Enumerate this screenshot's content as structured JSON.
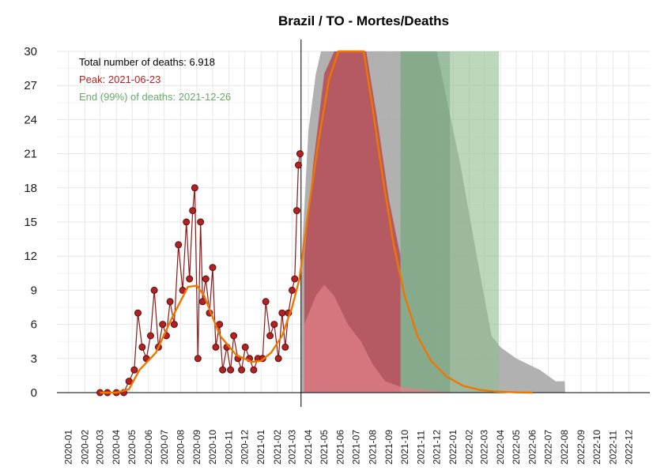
{
  "chart_data": {
    "type": "line",
    "title": "Brazil / TO - Mortes/Deaths",
    "xlabel": "",
    "ylabel": "",
    "ylim": [
      0,
      30
    ],
    "y_ticks": [
      "0",
      "3",
      "6",
      "9",
      "12",
      "15",
      "18",
      "21",
      "24",
      "27",
      "30"
    ],
    "x_ticks": [
      "2020-01",
      "2020-02",
      "2020-03",
      "2020-04",
      "2020-05",
      "2020-06",
      "2020-07",
      "2020-08",
      "2020-09",
      "2020-10",
      "2020-11",
      "2020-12",
      "2021-01",
      "2021-02",
      "2021-03",
      "2021-04",
      "2021-05",
      "2021-06",
      "2021-07",
      "2021-08",
      "2021-09",
      "2021-10",
      "2021-11",
      "2021-12",
      "2022-01",
      "2022-02",
      "2022-03",
      "2022-04",
      "2022-05",
      "2022-06",
      "2022-07",
      "2022-08",
      "2022-09",
      "2022-10",
      "2022-11",
      "2022-12"
    ],
    "grid": true,
    "annotations": {
      "total": "Total number of deaths: 6.918",
      "peak": "Peak: 2021-06-23",
      "end": "End (99%) of deaths: 2021-12-26"
    },
    "colors": {
      "observed": "#b22222",
      "observed_line": "#8b1a1a",
      "trend": "#ee7600",
      "forecast_band": "#a9a9a9",
      "peak_region": "#cd5c6b",
      "end_region": "#8fbc8f",
      "annotation_total": "#000000",
      "annotation_peak": "#b22222",
      "annotation_end": "#6aaa6a"
    },
    "today": "2021-03-18",
    "observed": [
      {
        "x": "2020-03-01",
        "y": 0
      },
      {
        "x": "2020-03-15",
        "y": 0
      },
      {
        "x": "2020-04-01",
        "y": 0
      },
      {
        "x": "2020-04-15",
        "y": 0
      },
      {
        "x": "2020-04-25",
        "y": 1
      },
      {
        "x": "2020-05-05",
        "y": 2
      },
      {
        "x": "2020-05-12",
        "y": 7
      },
      {
        "x": "2020-05-20",
        "y": 4
      },
      {
        "x": "2020-05-28",
        "y": 3
      },
      {
        "x": "2020-06-05",
        "y": 5
      },
      {
        "x": "2020-06-12",
        "y": 9
      },
      {
        "x": "2020-06-20",
        "y": 4
      },
      {
        "x": "2020-06-28",
        "y": 6
      },
      {
        "x": "2020-07-05",
        "y": 5
      },
      {
        "x": "2020-07-12",
        "y": 8
      },
      {
        "x": "2020-07-20",
        "y": 6
      },
      {
        "x": "2020-07-28",
        "y": 13
      },
      {
        "x": "2020-08-05",
        "y": 9
      },
      {
        "x": "2020-08-12",
        "y": 15
      },
      {
        "x": "2020-08-18",
        "y": 10
      },
      {
        "x": "2020-08-24",
        "y": 16
      },
      {
        "x": "2020-08-28",
        "y": 18
      },
      {
        "x": "2020-09-03",
        "y": 3
      },
      {
        "x": "2020-09-08",
        "y": 15
      },
      {
        "x": "2020-09-12",
        "y": 8
      },
      {
        "x": "2020-09-18",
        "y": 10
      },
      {
        "x": "2020-09-25",
        "y": 7
      },
      {
        "x": "2020-10-01",
        "y": 11
      },
      {
        "x": "2020-10-07",
        "y": 4
      },
      {
        "x": "2020-10-14",
        "y": 6
      },
      {
        "x": "2020-10-20",
        "y": 2
      },
      {
        "x": "2020-10-28",
        "y": 4
      },
      {
        "x": "2020-11-04",
        "y": 2
      },
      {
        "x": "2020-11-10",
        "y": 5
      },
      {
        "x": "2020-11-18",
        "y": 3
      },
      {
        "x": "2020-11-25",
        "y": 2
      },
      {
        "x": "2020-12-02",
        "y": 4
      },
      {
        "x": "2020-12-10",
        "y": 3
      },
      {
        "x": "2020-12-18",
        "y": 2
      },
      {
        "x": "2020-12-26",
        "y": 3
      },
      {
        "x": "2021-01-04",
        "y": 3
      },
      {
        "x": "2021-01-10",
        "y": 8
      },
      {
        "x": "2021-01-18",
        "y": 5
      },
      {
        "x": "2021-01-26",
        "y": 6
      },
      {
        "x": "2021-02-03",
        "y": 3
      },
      {
        "x": "2021-02-10",
        "y": 7
      },
      {
        "x": "2021-02-16",
        "y": 4
      },
      {
        "x": "2021-02-22",
        "y": 7
      },
      {
        "x": "2021-03-01",
        "y": 9
      },
      {
        "x": "2021-03-06",
        "y": 10
      },
      {
        "x": "2021-03-10",
        "y": 16
      },
      {
        "x": "2021-03-13",
        "y": 20
      },
      {
        "x": "2021-03-16",
        "y": 21
      }
    ],
    "trend": [
      {
        "x": "2020-03-01",
        "y": 0
      },
      {
        "x": "2020-04-01",
        "y": 0
      },
      {
        "x": "2020-04-25",
        "y": 0.3
      },
      {
        "x": "2020-05-15",
        "y": 2
      },
      {
        "x": "2020-06-15",
        "y": 3.5
      },
      {
        "x": "2020-07-15",
        "y": 6.5
      },
      {
        "x": "2020-08-15",
        "y": 9.3
      },
      {
        "x": "2020-09-01",
        "y": 9.4
      },
      {
        "x": "2020-09-15",
        "y": 8.5
      },
      {
        "x": "2020-10-15",
        "y": 5
      },
      {
        "x": "2020-11-15",
        "y": 3.3
      },
      {
        "x": "2020-12-15",
        "y": 2.7
      },
      {
        "x": "2021-01-01",
        "y": 2.8
      },
      {
        "x": "2021-01-20",
        "y": 3.5
      },
      {
        "x": "2021-02-10",
        "y": 5
      },
      {
        "x": "2021-03-01",
        "y": 7.5
      },
      {
        "x": "2021-03-15",
        "y": 10
      },
      {
        "x": "2021-04-01",
        "y": 16
      },
      {
        "x": "2021-04-20",
        "y": 22
      },
      {
        "x": "2021-05-10",
        "y": 27.5
      },
      {
        "x": "2021-05-28",
        "y": 30
      },
      {
        "x": "2021-06-23",
        "y": 30
      },
      {
        "x": "2021-07-15",
        "y": 30
      },
      {
        "x": "2021-08-01",
        "y": 25
      },
      {
        "x": "2021-08-20",
        "y": 19
      },
      {
        "x": "2021-09-10",
        "y": 13
      },
      {
        "x": "2021-10-01",
        "y": 8.5
      },
      {
        "x": "2021-10-25",
        "y": 5
      },
      {
        "x": "2021-11-20",
        "y": 2.8
      },
      {
        "x": "2021-12-20",
        "y": 1.4
      },
      {
        "x": "2022-01-20",
        "y": 0.6
      },
      {
        "x": "2022-02-20",
        "y": 0.25
      },
      {
        "x": "2022-03-20",
        "y": 0.1
      },
      {
        "x": "2022-05-01",
        "y": 0.02
      },
      {
        "x": "2022-06-01",
        "y": 0
      }
    ],
    "forecast_upper": [
      {
        "x": "2021-03-18",
        "y": 11
      },
      {
        "x": "2021-04-01",
        "y": 23
      },
      {
        "x": "2021-04-15",
        "y": 28
      },
      {
        "x": "2021-04-25",
        "y": 30
      },
      {
        "x": "2021-06-01",
        "y": 30
      },
      {
        "x": "2021-09-01",
        "y": 30
      },
      {
        "x": "2021-12-01",
        "y": 30
      },
      {
        "x": "2022-01-15",
        "y": 20
      },
      {
        "x": "2022-02-15",
        "y": 12
      },
      {
        "x": "2022-03-15",
        "y": 5
      },
      {
        "x": "2022-04-01",
        "y": 4
      },
      {
        "x": "2022-05-01",
        "y": 3
      },
      {
        "x": "2022-06-15",
        "y": 2
      },
      {
        "x": "2022-07-15",
        "y": 1
      },
      {
        "x": "2022-08-01",
        "y": 1
      },
      {
        "x": "2022-08-02",
        "y": 0
      }
    ],
    "peak_region": {
      "x_start": "2021-03-24",
      "x_end": "2021-09-23",
      "upper": [
        {
          "x": "2021-03-24",
          "y": 12
        },
        {
          "x": "2021-04-10",
          "y": 20
        },
        {
          "x": "2021-05-01",
          "y": 28
        },
        {
          "x": "2021-05-20",
          "y": 30
        },
        {
          "x": "2021-07-20",
          "y": 30
        },
        {
          "x": "2021-08-10",
          "y": 24
        },
        {
          "x": "2021-09-01",
          "y": 17
        },
        {
          "x": "2021-09-23",
          "y": 12
        }
      ]
    },
    "lower_band": [
      {
        "x": "2021-03-24",
        "y": 6
      },
      {
        "x": "2021-04-15",
        "y": 8.5
      },
      {
        "x": "2021-05-01",
        "y": 9.5
      },
      {
        "x": "2021-05-20",
        "y": 8.5
      },
      {
        "x": "2021-06-15",
        "y": 6
      },
      {
        "x": "2021-07-10",
        "y": 4.5
      },
      {
        "x": "2021-08-01",
        "y": 2.5
      },
      {
        "x": "2021-08-25",
        "y": 1
      },
      {
        "x": "2021-09-23",
        "y": 0.5
      },
      {
        "x": "2021-11-01",
        "y": 0.3
      },
      {
        "x": "2021-12-26",
        "y": 0
      }
    ],
    "end_region": {
      "x_start": "2021-09-23",
      "x_end": "2022-03-29",
      "upper": 30,
      "dark_until": "2021-12-26"
    }
  }
}
